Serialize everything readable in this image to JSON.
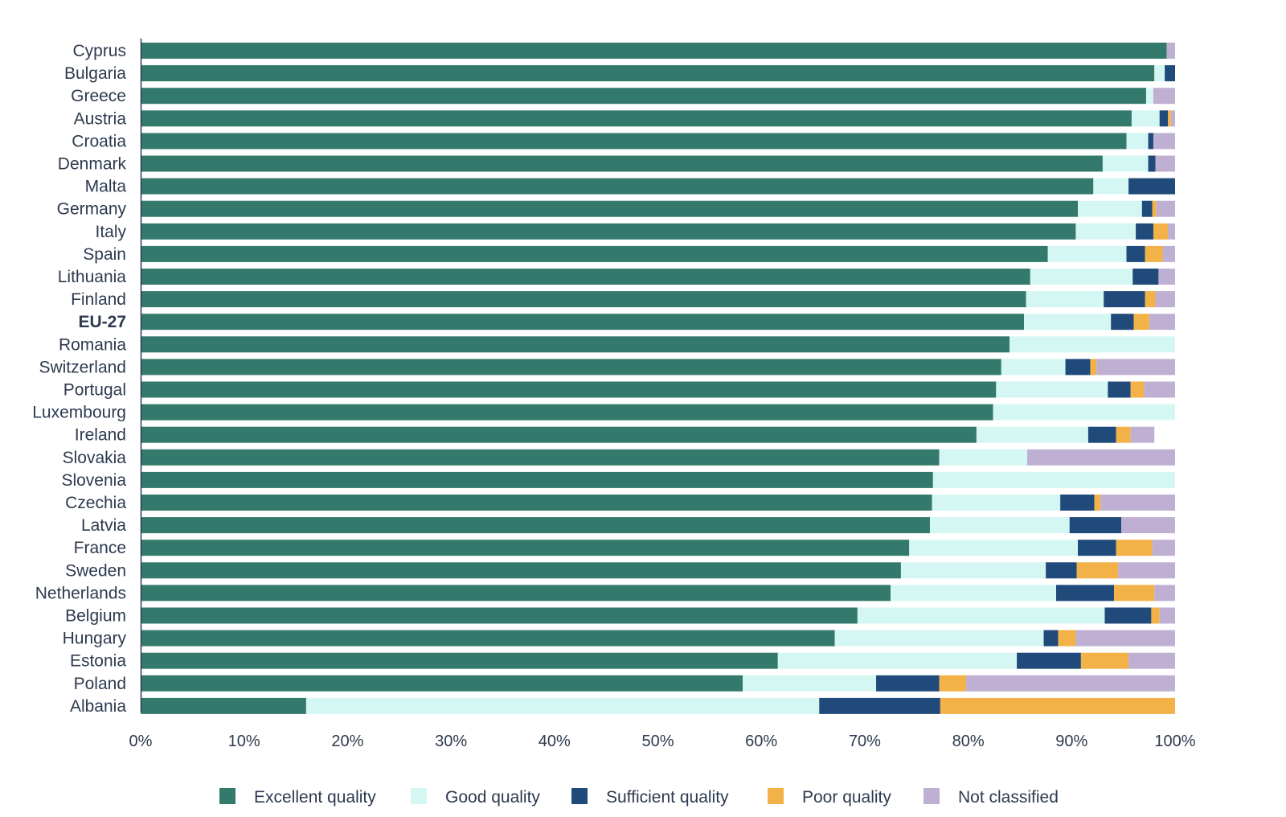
{
  "chart_data": {
    "type": "bar",
    "orientation": "horizontal",
    "stacked": true,
    "percent": true,
    "xlim": [
      0,
      100
    ],
    "xticks": [
      "0%",
      "10%",
      "20%",
      "30%",
      "40%",
      "50%",
      "60%",
      "70%",
      "80%",
      "90%",
      "100%"
    ],
    "legend_position": "bottom",
    "grid": false,
    "categories": [
      "Cyprus",
      "Bulgaria",
      "Greece",
      "Austria",
      "Croatia",
      "Denmark",
      "Malta",
      "Germany",
      "Italy",
      "Spain",
      "Lithuania",
      "Finland",
      "EU-27",
      "Romania",
      "Switzerland",
      "Portugal",
      "Luxembourg",
      "Ireland",
      "Slovakia",
      "Slovenia",
      "Czechia",
      "Latvia",
      "France",
      "Sweden",
      "Netherlands",
      "Belgium",
      "Hungary",
      "Estonia",
      "Poland",
      "Albania"
    ],
    "bold_categories": [
      "EU-27"
    ],
    "series": [
      {
        "name": "Excellent quality",
        "color": "#347a6c",
        "values": [
          99.2,
          98.0,
          97.2,
          95.8,
          95.3,
          93.0,
          92.1,
          90.6,
          90.4,
          87.7,
          86.0,
          85.6,
          85.4,
          84.0,
          83.2,
          82.7,
          82.4,
          80.8,
          77.2,
          76.6,
          76.5,
          76.3,
          74.3,
          73.5,
          72.5,
          69.3,
          67.1,
          61.6,
          58.2,
          16.0
        ]
      },
      {
        "name": "Good quality",
        "color": "#d5f7f4",
        "values": [
          0,
          1.0,
          0.7,
          2.7,
          2.1,
          4.4,
          3.4,
          6.2,
          5.8,
          7.6,
          9.9,
          7.5,
          8.4,
          16.0,
          6.2,
          10.8,
          17.6,
          10.8,
          8.5,
          23.4,
          12.4,
          13.5,
          16.3,
          14.0,
          16.0,
          23.9,
          20.2,
          23.1,
          12.9,
          49.6
        ]
      },
      {
        "name": "Sufficient quality",
        "color": "#1f4a7a",
        "values": [
          0,
          1.0,
          0,
          0.8,
          0.5,
          0.7,
          4.5,
          1.0,
          1.7,
          1.8,
          2.5,
          4.0,
          2.2,
          0,
          2.4,
          2.2,
          0,
          2.7,
          0,
          0,
          3.3,
          5.0,
          3.7,
          3.0,
          5.6,
          4.5,
          1.4,
          6.2,
          6.1,
          11.7
        ]
      },
      {
        "name": "Poor quality",
        "color": "#f3b247",
        "values": [
          0,
          0,
          0,
          0.3,
          0,
          0,
          0,
          0.4,
          1.4,
          1.7,
          0,
          1.0,
          1.5,
          0,
          0.6,
          1.3,
          0,
          1.4,
          0,
          0,
          0.6,
          0,
          3.5,
          4.0,
          3.9,
          0.8,
          1.7,
          4.6,
          2.6,
          22.7
        ]
      },
      {
        "name": "Not classified",
        "color": "#bfb0d3",
        "values": [
          0.8,
          0,
          2.1,
          0.4,
          2.1,
          1.9,
          0,
          1.8,
          0.7,
          1.2,
          1.6,
          1.9,
          2.5,
          0,
          7.6,
          3.0,
          0,
          2.3,
          14.3,
          0,
          7.2,
          5.2,
          2.2,
          5.5,
          2.0,
          1.5,
          9.6,
          4.5,
          20.2,
          0
        ]
      }
    ]
  }
}
